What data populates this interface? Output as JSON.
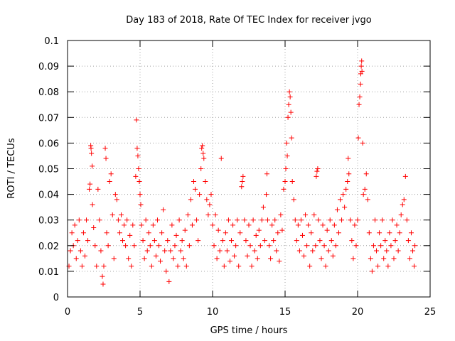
{
  "chart_data": {
    "type": "scatter",
    "title": "Day 183 of 2018, Rate Of TEC Index for receiver jvgo",
    "xlabel": "GPS time / hours",
    "ylabel": "ROTI / TECUs",
    "xlim": [
      0,
      25
    ],
    "ylim": [
      0,
      0.1
    ],
    "x_ticks": [
      "0",
      "5",
      "10",
      "15",
      "20",
      "25"
    ],
    "y_ticks": [
      "0",
      "0.01",
      "0.02",
      "0.03",
      "0.04",
      "0.05",
      "0.06",
      "0.07",
      "0.08",
      "0.09",
      "0.1"
    ],
    "grid": true,
    "legend": "none",
    "marker": "+",
    "color": "#ff0000",
    "series": [
      {
        "points": [
          [
            0.1,
            0.012
          ],
          [
            0.2,
            0.018
          ],
          [
            0.3,
            0.025
          ],
          [
            0.4,
            0.02
          ],
          [
            0.5,
            0.028
          ],
          [
            0.6,
            0.015
          ],
          [
            0.7,
            0.022
          ],
          [
            0.8,
            0.03
          ],
          [
            0.9,
            0.018
          ],
          [
            1.0,
            0.012
          ],
          [
            1.1,
            0.025
          ],
          [
            1.2,
            0.016
          ],
          [
            1.3,
            0.03
          ],
          [
            1.4,
            0.022
          ],
          [
            1.5,
            0.042
          ],
          [
            1.55,
            0.044
          ],
          [
            1.6,
            0.059
          ],
          [
            1.62,
            0.058
          ],
          [
            1.65,
            0.056
          ],
          [
            1.7,
            0.051
          ],
          [
            1.72,
            0.036
          ],
          [
            1.8,
            0.027
          ],
          [
            1.9,
            0.02
          ],
          [
            2.0,
            0.012
          ],
          [
            2.1,
            0.042
          ],
          [
            2.2,
            0.03
          ],
          [
            2.3,
            0.018
          ],
          [
            2.4,
            0.008
          ],
          [
            2.45,
            0.005
          ],
          [
            2.5,
            0.012
          ],
          [
            2.6,
            0.058
          ],
          [
            2.65,
            0.054
          ],
          [
            2.7,
            0.025
          ],
          [
            2.8,
            0.02
          ],
          [
            2.9,
            0.045
          ],
          [
            3.0,
            0.048
          ],
          [
            3.1,
            0.032
          ],
          [
            3.2,
            0.015
          ],
          [
            3.3,
            0.04
          ],
          [
            3.4,
            0.038
          ],
          [
            3.5,
            0.03
          ],
          [
            3.6,
            0.025
          ],
          [
            3.7,
            0.032
          ],
          [
            3.8,
            0.022
          ],
          [
            3.9,
            0.028
          ],
          [
            4.0,
            0.02
          ],
          [
            4.1,
            0.03
          ],
          [
            4.2,
            0.015
          ],
          [
            4.3,
            0.024
          ],
          [
            4.4,
            0.012
          ],
          [
            4.5,
            0.028
          ],
          [
            4.6,
            0.02
          ],
          [
            4.7,
            0.047
          ],
          [
            4.75,
            0.069
          ],
          [
            4.8,
            0.058
          ],
          [
            4.85,
            0.055
          ],
          [
            4.9,
            0.05
          ],
          [
            4.95,
            0.045
          ],
          [
            5.0,
            0.04
          ],
          [
            5.05,
            0.036
          ],
          [
            5.1,
            0.028
          ],
          [
            5.2,
            0.022
          ],
          [
            5.3,
            0.015
          ],
          [
            5.4,
            0.03
          ],
          [
            5.5,
            0.018
          ],
          [
            5.6,
            0.025
          ],
          [
            5.7,
            0.02
          ],
          [
            5.8,
            0.012
          ],
          [
            5.9,
            0.028
          ],
          [
            6.0,
            0.022
          ],
          [
            6.1,
            0.016
          ],
          [
            6.2,
            0.03
          ],
          [
            6.3,
            0.02
          ],
          [
            6.4,
            0.014
          ],
          [
            6.5,
            0.025
          ],
          [
            6.6,
            0.034
          ],
          [
            6.7,
            0.018
          ],
          [
            6.8,
            0.01
          ],
          [
            6.9,
            0.022
          ],
          [
            7.0,
            0.006
          ],
          [
            7.1,
            0.018
          ],
          [
            7.2,
            0.028
          ],
          [
            7.3,
            0.015
          ],
          [
            7.4,
            0.02
          ],
          [
            7.5,
            0.024
          ],
          [
            7.6,
            0.012
          ],
          [
            7.7,
            0.03
          ],
          [
            7.8,
            0.018
          ],
          [
            7.9,
            0.022
          ],
          [
            8.0,
            0.015
          ],
          [
            8.1,
            0.026
          ],
          [
            8.2,
            0.012
          ],
          [
            8.3,
            0.032
          ],
          [
            8.4,
            0.02
          ],
          [
            8.5,
            0.038
          ],
          [
            8.6,
            0.028
          ],
          [
            8.7,
            0.045
          ],
          [
            8.8,
            0.042
          ],
          [
            8.9,
            0.03
          ],
          [
            9.0,
            0.022
          ],
          [
            9.1,
            0.04
          ],
          [
            9.2,
            0.05
          ],
          [
            9.25,
            0.058
          ],
          [
            9.3,
            0.059
          ],
          [
            9.35,
            0.056
          ],
          [
            9.4,
            0.054
          ],
          [
            9.5,
            0.045
          ],
          [
            9.6,
            0.038
          ],
          [
            9.7,
            0.032
          ],
          [
            9.8,
            0.036
          ],
          [
            9.9,
            0.04
          ],
          [
            10.0,
            0.028
          ],
          [
            10.1,
            0.02
          ],
          [
            10.2,
            0.032
          ],
          [
            10.3,
            0.015
          ],
          [
            10.4,
            0.026
          ],
          [
            10.5,
            0.018
          ],
          [
            10.6,
            0.054
          ],
          [
            10.7,
            0.022
          ],
          [
            10.8,
            0.012
          ],
          [
            10.9,
            0.025
          ],
          [
            11.0,
            0.018
          ],
          [
            11.1,
            0.03
          ],
          [
            11.2,
            0.014
          ],
          [
            11.3,
            0.022
          ],
          [
            11.4,
            0.028
          ],
          [
            11.5,
            0.016
          ],
          [
            11.6,
            0.02
          ],
          [
            11.7,
            0.03
          ],
          [
            11.8,
            0.012
          ],
          [
            11.9,
            0.025
          ],
          [
            12.0,
            0.043
          ],
          [
            12.05,
            0.045
          ],
          [
            12.1,
            0.047
          ],
          [
            12.2,
            0.03
          ],
          [
            12.3,
            0.022
          ],
          [
            12.4,
            0.016
          ],
          [
            12.5,
            0.028
          ],
          [
            12.6,
            0.02
          ],
          [
            12.7,
            0.012
          ],
          [
            12.8,
            0.03
          ],
          [
            12.9,
            0.018
          ],
          [
            13.0,
            0.024
          ],
          [
            13.1,
            0.015
          ],
          [
            13.2,
            0.026
          ],
          [
            13.3,
            0.02
          ],
          [
            13.4,
            0.03
          ],
          [
            13.5,
            0.035
          ],
          [
            13.6,
            0.022
          ],
          [
            13.7,
            0.04
          ],
          [
            13.75,
            0.048
          ],
          [
            13.8,
            0.03
          ],
          [
            13.9,
            0.02
          ],
          [
            14.0,
            0.015
          ],
          [
            14.1,
            0.028
          ],
          [
            14.2,
            0.022
          ],
          [
            14.3,
            0.03
          ],
          [
            14.4,
            0.018
          ],
          [
            14.5,
            0.025
          ],
          [
            14.6,
            0.014
          ],
          [
            14.7,
            0.032
          ],
          [
            14.8,
            0.026
          ],
          [
            14.9,
            0.042
          ],
          [
            15.0,
            0.045
          ],
          [
            15.05,
            0.05
          ],
          [
            15.1,
            0.06
          ],
          [
            15.15,
            0.055
          ],
          [
            15.2,
            0.07
          ],
          [
            15.25,
            0.075
          ],
          [
            15.3,
            0.08
          ],
          [
            15.35,
            0.078
          ],
          [
            15.4,
            0.072
          ],
          [
            15.45,
            0.062
          ],
          [
            15.5,
            0.045
          ],
          [
            15.6,
            0.038
          ],
          [
            15.7,
            0.03
          ],
          [
            15.8,
            0.022
          ],
          [
            15.9,
            0.028
          ],
          [
            16.0,
            0.018
          ],
          [
            16.1,
            0.03
          ],
          [
            16.2,
            0.024
          ],
          [
            16.3,
            0.016
          ],
          [
            16.4,
            0.032
          ],
          [
            16.5,
            0.02
          ],
          [
            16.6,
            0.028
          ],
          [
            16.7,
            0.012
          ],
          [
            16.8,
            0.025
          ],
          [
            16.9,
            0.018
          ],
          [
            17.0,
            0.032
          ],
          [
            17.1,
            0.02
          ],
          [
            17.15,
            0.047
          ],
          [
            17.2,
            0.049
          ],
          [
            17.25,
            0.05
          ],
          [
            17.3,
            0.03
          ],
          [
            17.4,
            0.022
          ],
          [
            17.5,
            0.015
          ],
          [
            17.6,
            0.028
          ],
          [
            17.7,
            0.02
          ],
          [
            17.8,
            0.012
          ],
          [
            17.9,
            0.026
          ],
          [
            18.0,
            0.018
          ],
          [
            18.1,
            0.03
          ],
          [
            18.2,
            0.022
          ],
          [
            18.3,
            0.016
          ],
          [
            18.4,
            0.028
          ],
          [
            18.5,
            0.02
          ],
          [
            18.6,
            0.034
          ],
          [
            18.7,
            0.025
          ],
          [
            18.8,
            0.038
          ],
          [
            18.9,
            0.03
          ],
          [
            19.0,
            0.04
          ],
          [
            19.1,
            0.035
          ],
          [
            19.2,
            0.042
          ],
          [
            19.3,
            0.045
          ],
          [
            19.35,
            0.054
          ],
          [
            19.4,
            0.048
          ],
          [
            19.5,
            0.03
          ],
          [
            19.6,
            0.022
          ],
          [
            19.7,
            0.015
          ],
          [
            19.8,
            0.028
          ],
          [
            19.9,
            0.02
          ],
          [
            20.0,
            0.03
          ],
          [
            20.05,
            0.062
          ],
          [
            20.1,
            0.075
          ],
          [
            20.15,
            0.078
          ],
          [
            20.2,
            0.083
          ],
          [
            20.22,
            0.087
          ],
          [
            20.25,
            0.09
          ],
          [
            20.28,
            0.092
          ],
          [
            20.3,
            0.088
          ],
          [
            20.35,
            0.06
          ],
          [
            20.4,
            0.04
          ],
          [
            20.5,
            0.042
          ],
          [
            20.6,
            0.048
          ],
          [
            20.7,
            0.038
          ],
          [
            20.8,
            0.025
          ],
          [
            20.9,
            0.015
          ],
          [
            21.0,
            0.01
          ],
          [
            21.1,
            0.02
          ],
          [
            21.2,
            0.03
          ],
          [
            21.3,
            0.018
          ],
          [
            21.4,
            0.012
          ],
          [
            21.5,
            0.025
          ],
          [
            21.6,
            0.02
          ],
          [
            21.7,
            0.03
          ],
          [
            21.8,
            0.015
          ],
          [
            21.9,
            0.022
          ],
          [
            22.0,
            0.018
          ],
          [
            22.1,
            0.012
          ],
          [
            22.2,
            0.025
          ],
          [
            22.3,
            0.02
          ],
          [
            22.4,
            0.03
          ],
          [
            22.5,
            0.015
          ],
          [
            22.6,
            0.022
          ],
          [
            22.7,
            0.028
          ],
          [
            22.8,
            0.018
          ],
          [
            22.9,
            0.025
          ],
          [
            23.0,
            0.032
          ],
          [
            23.1,
            0.036
          ],
          [
            23.2,
            0.038
          ],
          [
            23.3,
            0.047
          ],
          [
            23.4,
            0.03
          ],
          [
            23.5,
            0.022
          ],
          [
            23.6,
            0.015
          ],
          [
            23.7,
            0.025
          ],
          [
            23.8,
            0.018
          ],
          [
            23.9,
            0.012
          ],
          [
            23.95,
            0.02
          ]
        ]
      }
    ]
  }
}
